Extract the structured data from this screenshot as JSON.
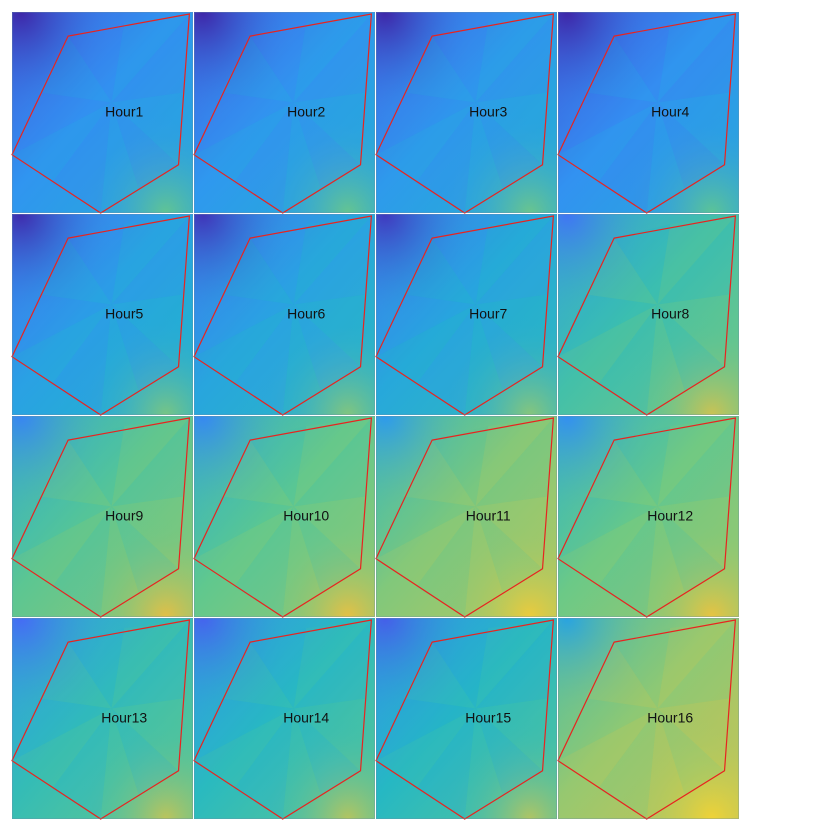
{
  "chart_data": {
    "type": "heatmap",
    "layout": {
      "rows": 4,
      "cols": 4
    },
    "colors": {
      "boundary": "#e8231f",
      "background": "#ffffff",
      "colormap": [
        "#3e26a8",
        "#4669f5",
        "#2f97f0",
        "#20b7c8",
        "#66c989",
        "#b4c760",
        "#f5be3c",
        "#f9de2c"
      ]
    },
    "boundary_shape": "irregular hexagon",
    "panels": [
      {
        "label": "Hour1",
        "level": 0.28
      },
      {
        "label": "Hour2",
        "level": 0.29
      },
      {
        "label": "Hour3",
        "level": 0.3
      },
      {
        "label": "Hour4",
        "level": 0.27
      },
      {
        "label": "Hour5",
        "level": 0.33
      },
      {
        "label": "Hour6",
        "level": 0.35
      },
      {
        "label": "Hour7",
        "level": 0.36
      },
      {
        "label": "Hour8",
        "level": 0.5
      },
      {
        "label": "Hour9",
        "level": 0.55
      },
      {
        "label": "Hour10",
        "level": 0.56
      },
      {
        "label": "Hour11",
        "level": 0.62
      },
      {
        "label": "Hour12",
        "level": 0.58
      },
      {
        "label": "Hour13",
        "level": 0.47
      },
      {
        "label": "Hour14",
        "level": 0.45
      },
      {
        "label": "Hour15",
        "level": 0.44
      },
      {
        "label": "Hour16",
        "level": 0.66
      }
    ]
  }
}
